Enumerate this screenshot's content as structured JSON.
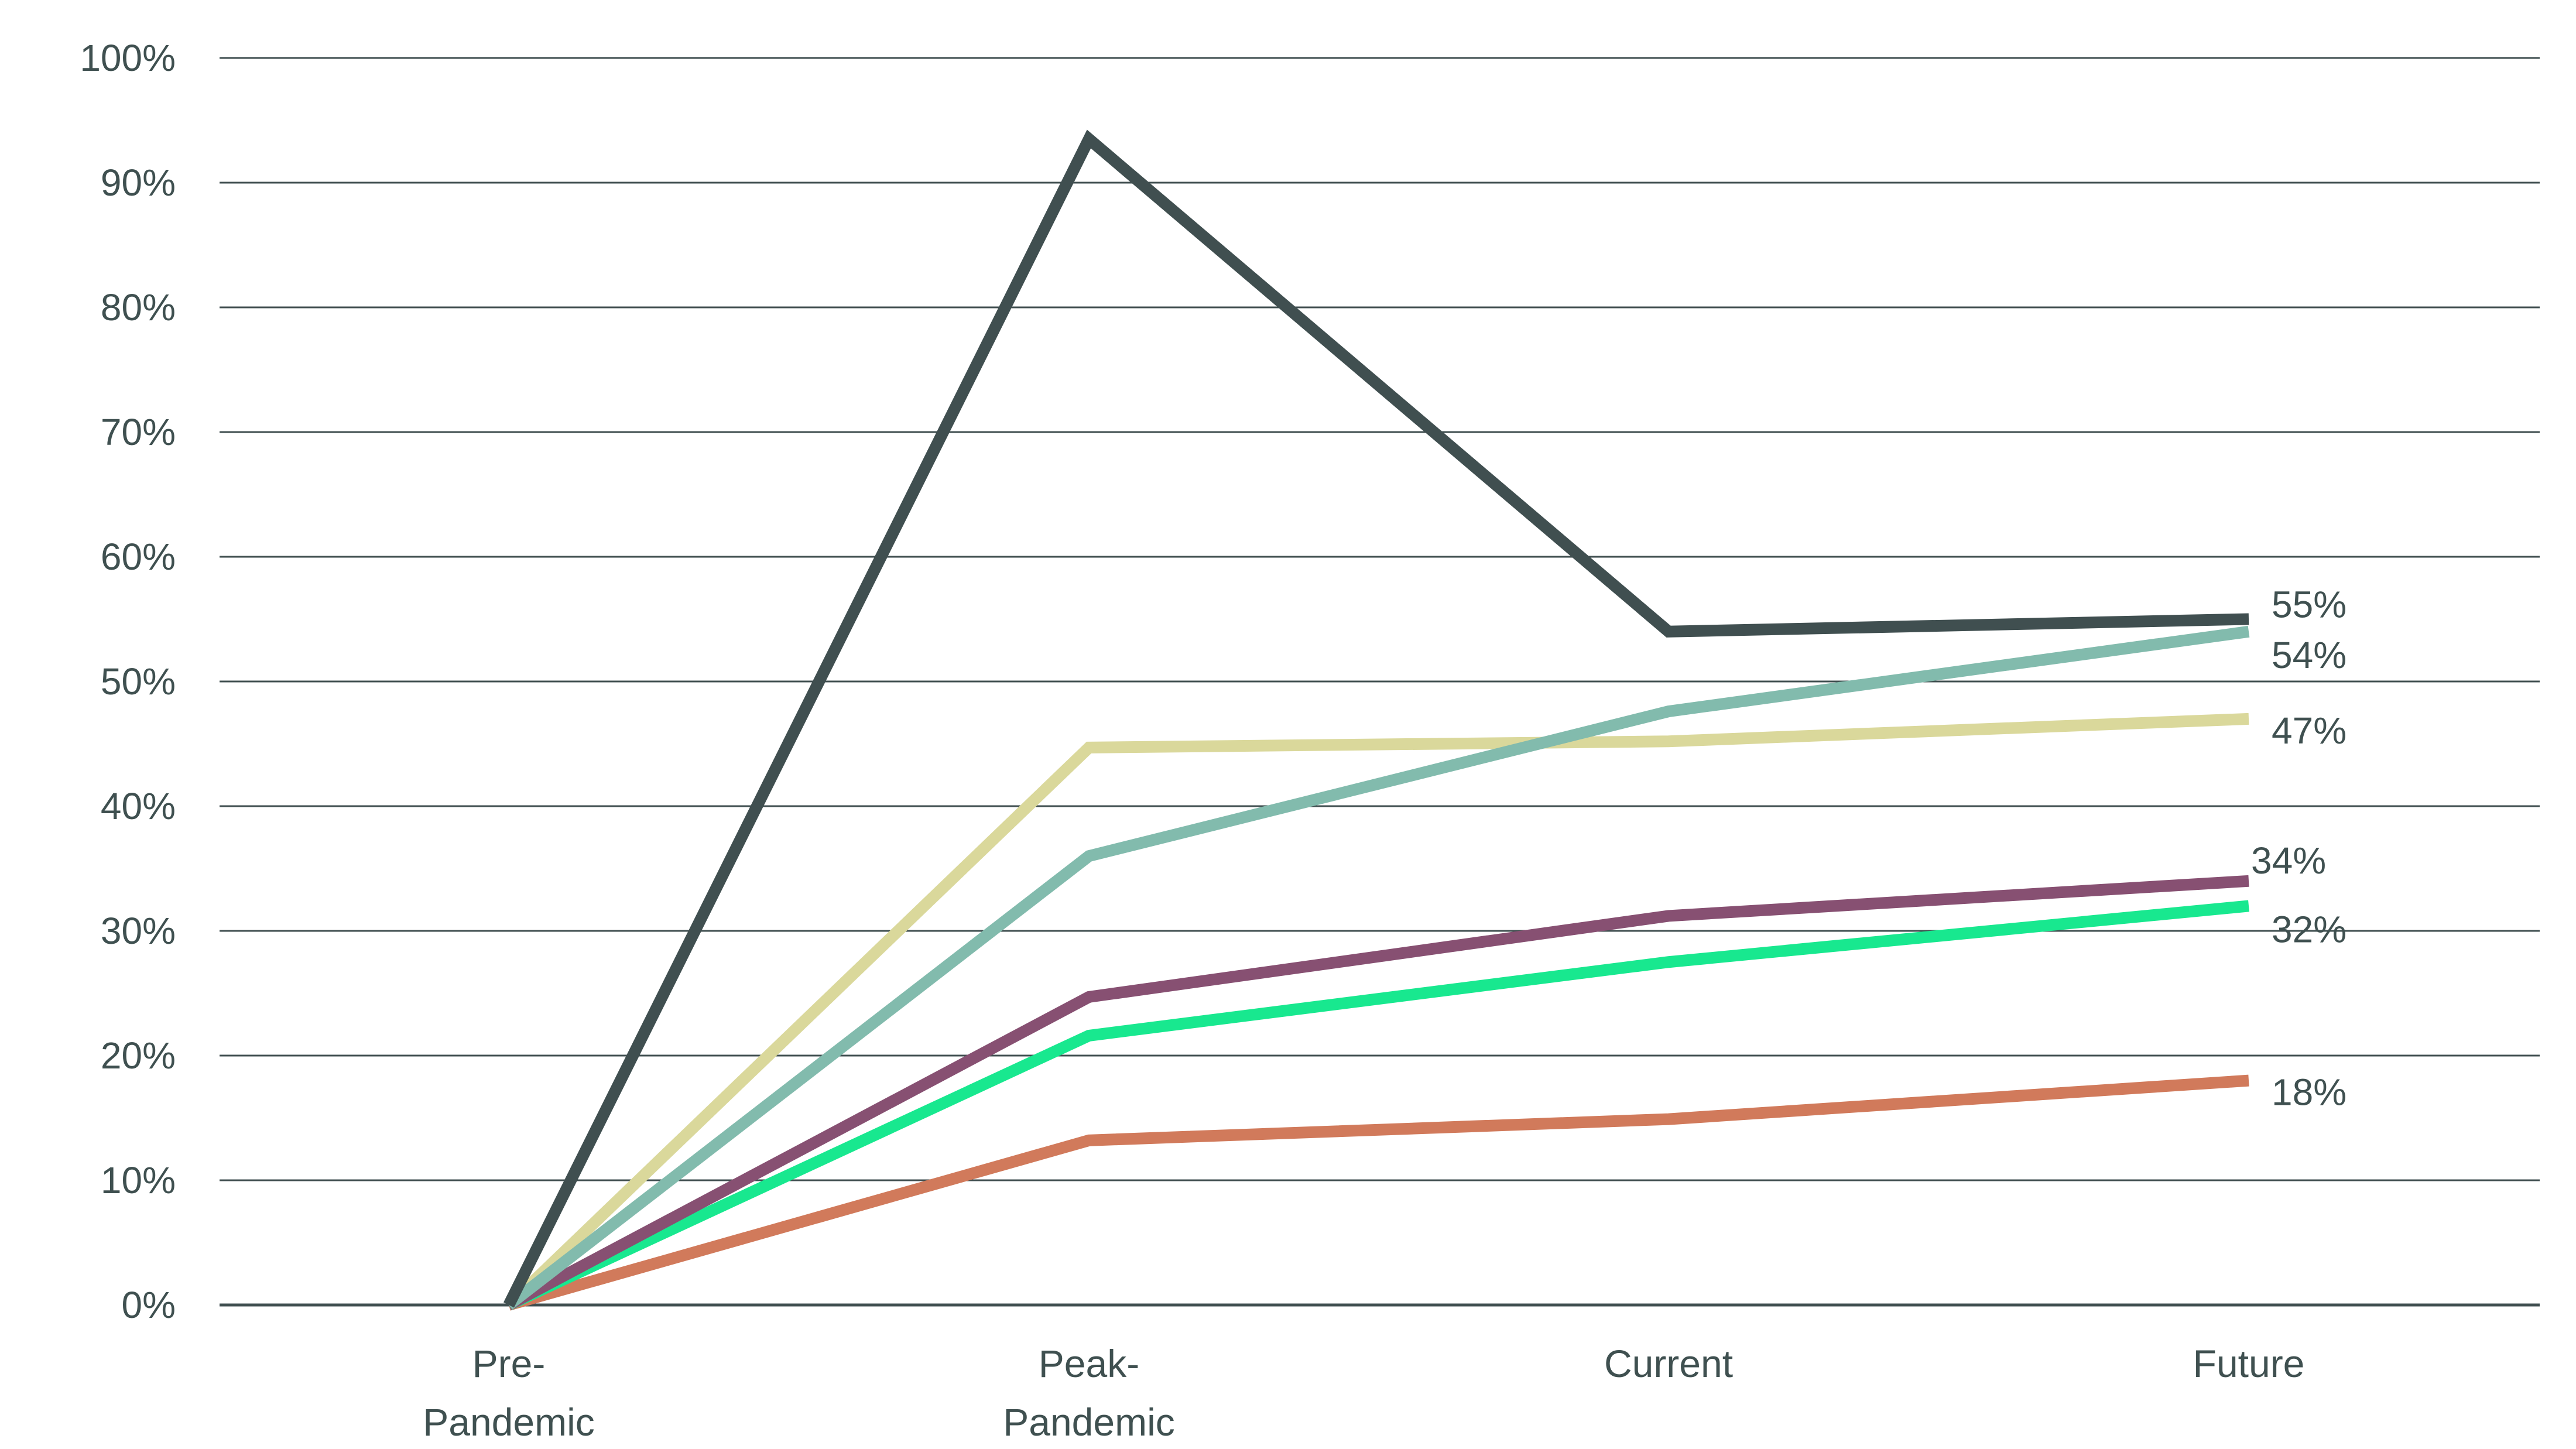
{
  "chart_data": {
    "type": "line",
    "title": "",
    "xlabel": "",
    "ylabel": "",
    "categories": [
      [
        "Pre-",
        "Pandemic"
      ],
      [
        "Peak-",
        "Pandemic"
      ],
      [
        "Current"
      ],
      [
        "Future"
      ]
    ],
    "ylim": [
      0,
      100
    ],
    "yticks": [
      0,
      10,
      20,
      30,
      40,
      50,
      60,
      70,
      80,
      90,
      100
    ],
    "ytick_labels": [
      "0%",
      "10%",
      "20%",
      "30%",
      "40%",
      "50%",
      "60%",
      "70%",
      "80%",
      "90%",
      "100%"
    ],
    "grid": true,
    "legend": "none",
    "series": [
      {
        "color": "#404f50",
        "values": [
          0,
          93.5,
          54,
          55
        ],
        "end_label": "55%"
      },
      {
        "color": "#82bbad",
        "values": [
          0,
          36,
          47.6,
          54
        ],
        "end_label": "54%"
      },
      {
        "color": "#dad89b",
        "values": [
          0,
          44.7,
          45.2,
          47
        ],
        "end_label": "47%"
      },
      {
        "color": "#875072",
        "values": [
          0,
          24.7,
          31.2,
          34
        ],
        "end_label": "34%"
      },
      {
        "color": "#18e88f",
        "values": [
          0,
          21.6,
          27.5,
          32
        ],
        "end_label": "32%"
      },
      {
        "color": "#d17a5b",
        "values": [
          0,
          13.2,
          14.9,
          18
        ],
        "end_label": "18%"
      }
    ]
  }
}
